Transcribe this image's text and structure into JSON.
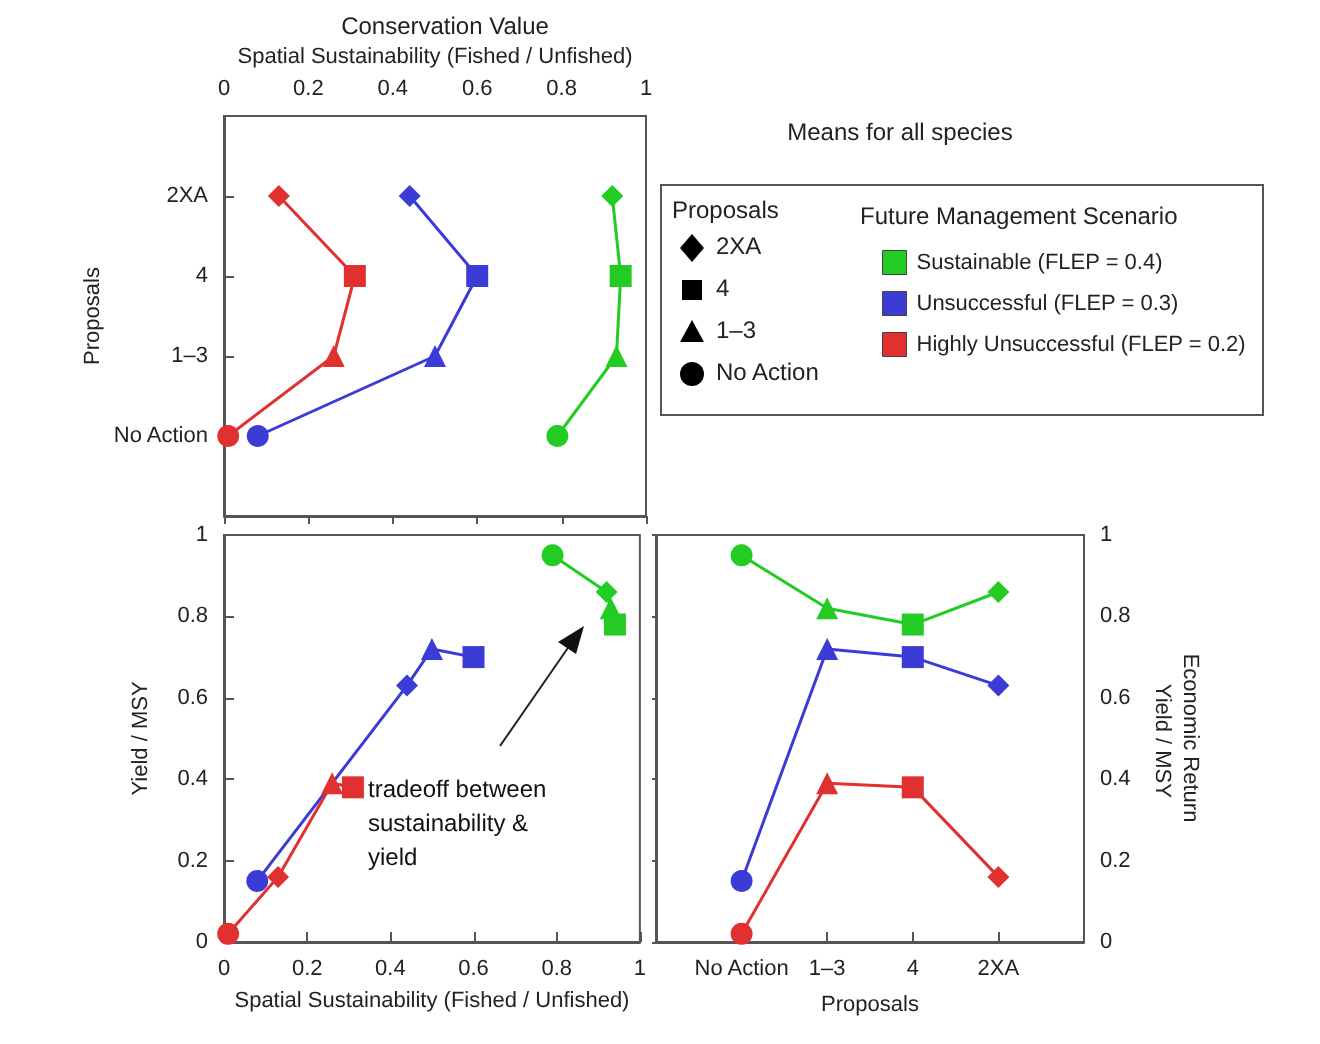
{
  "chart_data": [
    {
      "type": "line",
      "orientation": "horizontal",
      "title": "Conservation Value",
      "xlabel": "Spatial Sustainability (Fished / Unfished)",
      "ylabel": "Proposals",
      "categories": [
        "2XA",
        "4",
        "1–3",
        "No Action"
      ],
      "xlim": [
        0,
        1
      ],
      "xticks": [
        0,
        0.2,
        0.4,
        0.6,
        0.8,
        1
      ],
      "legend": "right",
      "legend_title": "Future Management Scenario",
      "series": [
        {
          "name": "Sustainable (FLEP = 0.4)",
          "color": "#22cc22",
          "marker": [
            "diamond",
            "square",
            "triangle",
            "circle"
          ],
          "values": [
            0.92,
            0.94,
            0.93,
            0.79
          ]
        },
        {
          "name": "Unsuccessful (FLEP = 0.3)",
          "color": "#3b3bd6",
          "marker": [
            "diamond",
            "square",
            "triangle",
            "circle"
          ],
          "values": [
            0.44,
            0.6,
            0.5,
            0.08
          ]
        },
        {
          "name": "Highly Unsuccessful (FLEP = 0.2)",
          "color": "#e03030",
          "marker": [
            "diamond",
            "square",
            "triangle",
            "circle"
          ],
          "values": [
            0.13,
            0.31,
            0.26,
            0.01
          ]
        }
      ]
    },
    {
      "type": "line",
      "xlabel": "Spatial Sustainability (Fished / Unfished)",
      "ylabel": "Yield / MSY",
      "xlim": [
        0,
        1
      ],
      "xticks": [
        0,
        0.2,
        0.4,
        0.6,
        0.8,
        1
      ],
      "ylim": [
        0,
        1
      ],
      "yticks": [
        0,
        0.2,
        0.4,
        0.6,
        0.8,
        1
      ],
      "annotations": [
        "tradeoff between sustainability & yield"
      ],
      "series": [
        {
          "color": "#22cc22",
          "marker": [
            "circle",
            "diamond",
            "triangle",
            "square"
          ],
          "x": [
            0.79,
            0.92,
            0.93,
            0.94
          ],
          "values": [
            0.95,
            0.86,
            0.82,
            0.78
          ]
        },
        {
          "color": "#3b3bd6",
          "marker": [
            "circle",
            "diamond",
            "triangle",
            "square"
          ],
          "x": [
            0.08,
            0.44,
            0.5,
            0.6
          ],
          "values": [
            0.15,
            0.63,
            0.72,
            0.7
          ]
        },
        {
          "color": "#e03030",
          "marker": [
            "circle",
            "diamond",
            "triangle",
            "square"
          ],
          "x": [
            0.01,
            0.13,
            0.26,
            0.31
          ],
          "values": [
            0.02,
            0.16,
            0.39,
            0.38
          ]
        }
      ]
    },
    {
      "type": "line",
      "xlabel": "Proposals",
      "ylabel": "Economic Return Yield / MSY",
      "categories": [
        "No Action",
        "1–3",
        "4",
        "2XA"
      ],
      "ylim": [
        0,
        1
      ],
      "yticks": [
        0,
        0.2,
        0.4,
        0.6,
        0.8,
        1
      ],
      "series": [
        {
          "color": "#22cc22",
          "marker": [
            "circle",
            "triangle",
            "square",
            "diamond"
          ],
          "values": [
            0.95,
            0.82,
            0.78,
            0.86
          ]
        },
        {
          "color": "#3b3bd6",
          "marker": [
            "circle",
            "triangle",
            "square",
            "diamond"
          ],
          "values": [
            0.15,
            0.72,
            0.7,
            0.63
          ]
        },
        {
          "color": "#e03030",
          "marker": [
            "circle",
            "triangle",
            "square",
            "diamond"
          ],
          "values": [
            0.02,
            0.39,
            0.38,
            0.16
          ]
        }
      ]
    },
    {
      "type": "other",
      "title": "Means for all species",
      "legend_title": "Proposals",
      "categories": [
        "2XA",
        "4",
        "1–3",
        "No Action"
      ]
    }
  ]
}
